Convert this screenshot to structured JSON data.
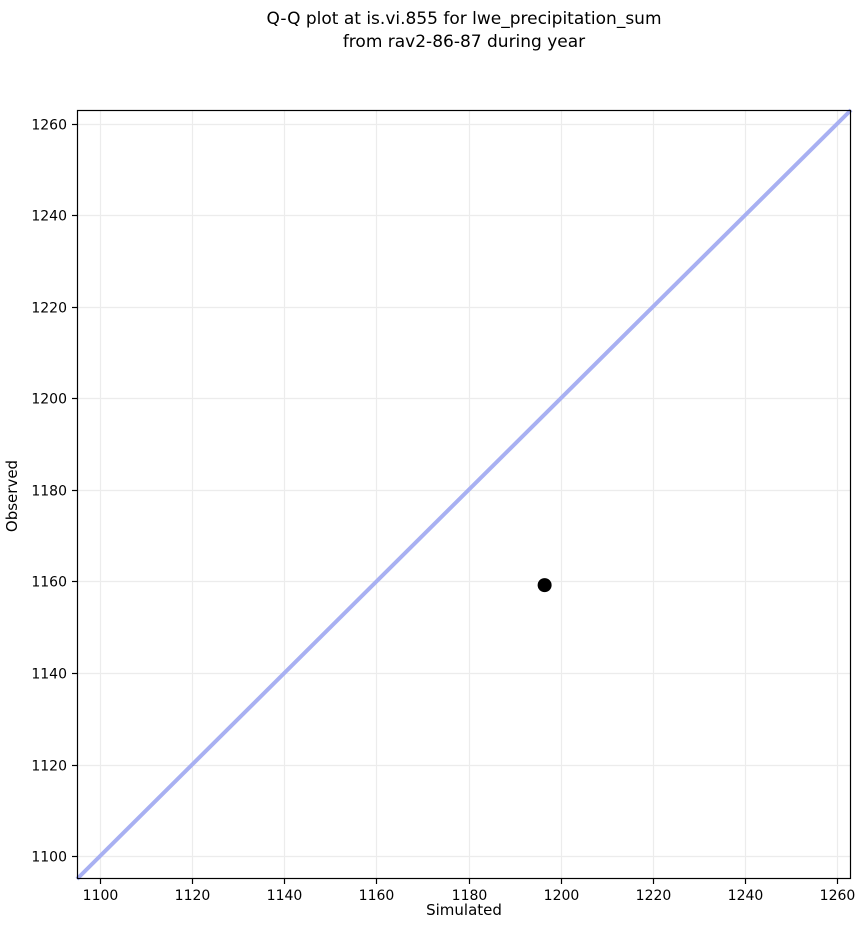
{
  "figure": {
    "background_color": "#ffffff"
  },
  "chart_data": {
    "type": "scatter",
    "title": "Q-Q plot at is.vi.855 for lwe_precipitation_sum\nfrom rav2-86-87 during year",
    "title_lines": [
      "Q-Q plot at is.vi.855 for lwe_precipitation_sum",
      "from rav2-86-87 during year"
    ],
    "xlabel": "Simulated",
    "ylabel": "Observed",
    "xlim": [
      1095,
      1263
    ],
    "ylim": [
      1095,
      1263
    ],
    "xticks": [
      1100,
      1120,
      1140,
      1160,
      1180,
      1200,
      1220,
      1240,
      1260
    ],
    "yticks": [
      1100,
      1120,
      1140,
      1160,
      1180,
      1200,
      1220,
      1240,
      1260
    ],
    "grid": true,
    "legend": false,
    "series": [
      {
        "name": "identity-line",
        "type": "line",
        "color": "#a8b0f2",
        "line_width": 4,
        "points": [
          {
            "x": 1095,
            "y": 1095
          },
          {
            "x": 1263,
            "y": 1263
          }
        ]
      },
      {
        "name": "quantile-points",
        "type": "scatter",
        "color": "#000000",
        "marker_radius": 7,
        "points": [
          {
            "x": 1196.5,
            "y": 1159.2
          }
        ]
      }
    ],
    "colors": {
      "grid": "#ececec",
      "axis": "#000000",
      "tick_labels": "#000000",
      "background": "#ffffff"
    }
  }
}
